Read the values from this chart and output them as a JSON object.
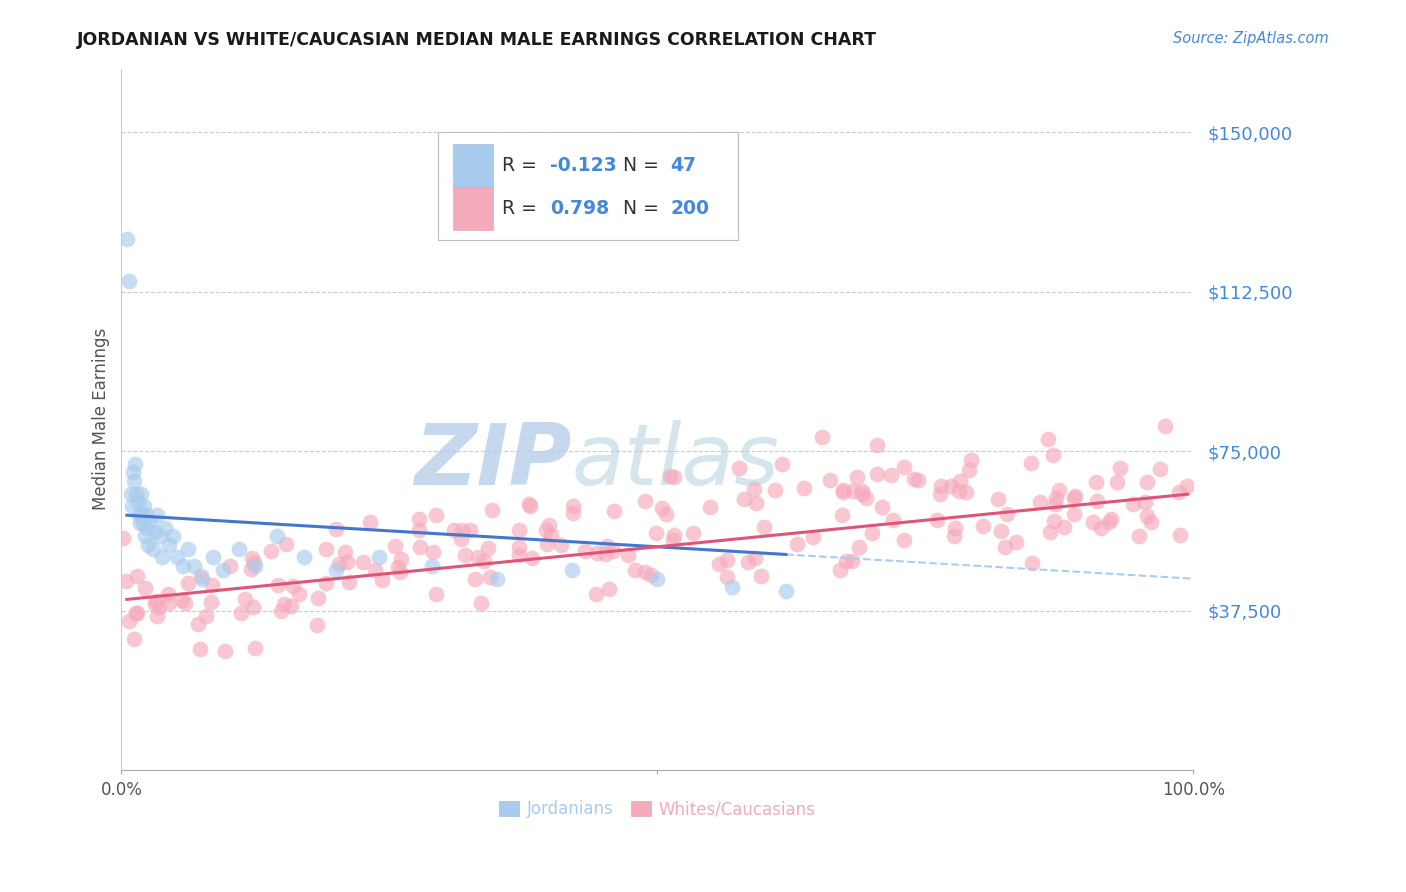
{
  "title": "JORDANIAN VS WHITE/CAUCASIAN MEDIAN MALE EARNINGS CORRELATION CHART",
  "source": "Source: ZipAtlas.com",
  "ylabel": "Median Male Earnings",
  "blue_R": -0.123,
  "blue_N": 47,
  "pink_R": 0.798,
  "pink_N": 200,
  "blue_label": "Jordanians",
  "pink_label": "Whites/Caucasians",
  "blue_color": "#A8CCEE",
  "pink_color": "#F5AABB",
  "blue_line_color": "#4477CC",
  "pink_line_color": "#DD5577",
  "dashed_line_color": "#AACCEE",
  "title_color": "#1a1a1a",
  "axis_label_color": "#555555",
  "ytick_color": "#4488DD",
  "background_color": "#FFFFFF",
  "grid_color": "#CCCCCC",
  "legend_text_color": "#4488DD",
  "legend_label_color": "#333333",
  "watermark_zip_color": "#4477CC",
  "watermark_atlas_color": "#AABBCC"
}
